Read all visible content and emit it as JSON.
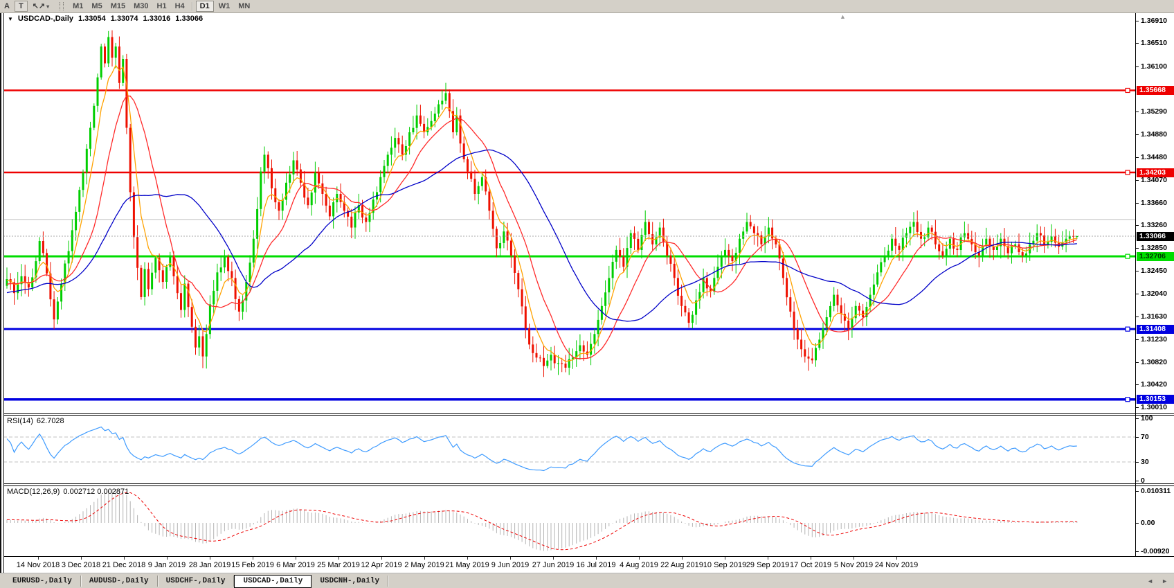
{
  "toolbar": {
    "font_tool": "A",
    "text_tool": "T",
    "arrows_tool_icon": "↖↗",
    "dropdown_icon": "▾",
    "timeframes": [
      "M1",
      "M5",
      "M15",
      "M30",
      "H1",
      "H4",
      "D1",
      "W1",
      "MN"
    ],
    "active_timeframe": "D1"
  },
  "chart": {
    "collapse_icon": "▼",
    "title": "USDCAD-,Daily",
    "quote": {
      "open": "1.33054",
      "high": "1.33074",
      "low": "1.33016",
      "close": "1.33066"
    },
    "shift_marker": "▲",
    "price_axis": {
      "ticks": [
        {
          "text": "1.36910",
          "v": 1.3691
        },
        {
          "text": "1.36510",
          "v": 1.3651
        },
        {
          "text": "1.36100",
          "v": 1.361
        },
        {
          "text": "1.35290",
          "v": 1.3529
        },
        {
          "text": "1.34880",
          "v": 1.3488
        },
        {
          "text": "1.34480",
          "v": 1.3448
        },
        {
          "text": "1.34070",
          "v": 1.3407
        },
        {
          "text": "1.33660",
          "v": 1.3366
        },
        {
          "text": "1.33260",
          "v": 1.3326
        },
        {
          "text": "1.32850",
          "v": 1.3285
        },
        {
          "text": "1.32450",
          "v": 1.3245
        },
        {
          "text": "1.32040",
          "v": 1.3204
        },
        {
          "text": "1.31630",
          "v": 1.3163
        },
        {
          "text": "1.31230",
          "v": 1.3123
        },
        {
          "text": "1.30820",
          "v": 1.3082
        },
        {
          "text": "1.30420",
          "v": 1.3042
        },
        {
          "text": "1.30010",
          "v": 1.3001
        }
      ],
      "badges": [
        {
          "text": "1.35668",
          "v": 1.35668,
          "bg": "#EE0000",
          "fg": "#FFFFFF"
        },
        {
          "text": "1.34203",
          "v": 1.34203,
          "bg": "#EE0000",
          "fg": "#FFFFFF"
        },
        {
          "text": "1.33066",
          "v": 1.33066,
          "bg": "#000000",
          "fg": "#FFFFFF"
        },
        {
          "text": "1.32706",
          "v": 1.32706,
          "bg": "#00DD00",
          "fg": "#003300"
        },
        {
          "text": "1.31408",
          "v": 1.31408,
          "bg": "#0000E0",
          "fg": "#FFFFFF"
        },
        {
          "text": "1.30153",
          "v": 1.30153,
          "bg": "#0000E0",
          "fg": "#FFFFFF"
        }
      ]
    }
  },
  "chart_data": {
    "type": "candlestick",
    "symbol": "USDCAD-",
    "period": "Daily",
    "bars": 296,
    "ylim": [
      1.299,
      1.3706
    ],
    "bull_color": "#00CE00",
    "bear_color": "#EE1100",
    "last_bar": {
      "open": 1.33054,
      "high": 1.33074,
      "low": 1.33016,
      "close": 1.33066
    },
    "current_price": 1.33066,
    "moving_averages": [
      {
        "period": 6,
        "type": "ema",
        "color": "#FFA200"
      },
      {
        "period": 14,
        "type": "sma",
        "color": "#FF2A2A"
      },
      {
        "period": 34,
        "type": "sma",
        "color": "#0000C8"
      }
    ],
    "hlines": [
      {
        "price": 1.35668,
        "color": "#EE0000",
        "width": 2.5,
        "handle": true
      },
      {
        "price": 1.34203,
        "color": "#EE0000",
        "width": 2.5,
        "handle": true
      },
      {
        "price": 1.33363,
        "color": "#BBBBBB",
        "width": 1,
        "handle": false
      },
      {
        "price": 1.32706,
        "color": "#00DD00",
        "width": 3,
        "handle": true
      },
      {
        "price": 1.31408,
        "color": "#0000E0",
        "width": 3,
        "handle": true
      },
      {
        "price": 1.30153,
        "color": "#0000E0",
        "width": 3.5,
        "handle": true
      }
    ],
    "anchor_closes": [
      [
        0,
        1.323
      ],
      [
        2,
        1.3205
      ],
      [
        4,
        1.3235
      ],
      [
        6,
        1.3215
      ],
      [
        8,
        1.3262
      ],
      [
        9,
        1.3298
      ],
      [
        11,
        1.324
      ],
      [
        13,
        1.3158
      ],
      [
        14,
        1.319
      ],
      [
        15,
        1.3222
      ],
      [
        17,
        1.328
      ],
      [
        19,
        1.335
      ],
      [
        21,
        1.342
      ],
      [
        23,
        1.35
      ],
      [
        25,
        1.359
      ],
      [
        26,
        1.3645
      ],
      [
        27,
        1.3615
      ],
      [
        28,
        1.3662
      ],
      [
        29,
        1.3625
      ],
      [
        30,
        1.3645
      ],
      [
        31,
        1.358
      ],
      [
        32,
        1.3623
      ],
      [
        33,
        1.35
      ],
      [
        34,
        1.3385
      ],
      [
        35,
        1.3305
      ],
      [
        36,
        1.325
      ],
      [
        37,
        1.3198
      ],
      [
        38,
        1.3248
      ],
      [
        39,
        1.3212
      ],
      [
        41,
        1.3268
      ],
      [
        43,
        1.3225
      ],
      [
        45,
        1.3272
      ],
      [
        47,
        1.3205
      ],
      [
        48,
        1.3175
      ],
      [
        49,
        1.3222
      ],
      [
        51,
        1.3145
      ],
      [
        52,
        1.3108
      ],
      [
        53,
        1.3128
      ],
      [
        54,
        1.3092
      ],
      [
        55,
        1.3132
      ],
      [
        56,
        1.3185
      ],
      [
        58,
        1.3242
      ],
      [
        60,
        1.327
      ],
      [
        62,
        1.3232
      ],
      [
        64,
        1.3172
      ],
      [
        66,
        1.3225
      ],
      [
        68,
        1.3302
      ],
      [
        69,
        1.3355
      ],
      [
        70,
        1.3422
      ],
      [
        71,
        1.3452
      ],
      [
        72,
        1.3428
      ],
      [
        73,
        1.3392
      ],
      [
        75,
        1.3352
      ],
      [
        77,
        1.3402
      ],
      [
        79,
        1.3442
      ],
      [
        81,
        1.3402
      ],
      [
        83,
        1.3362
      ],
      [
        85,
        1.342
      ],
      [
        87,
        1.3382
      ],
      [
        89,
        1.3342
      ],
      [
        91,
        1.3382
      ],
      [
        93,
        1.3352
      ],
      [
        95,
        1.3322
      ],
      [
        97,
        1.3362
      ],
      [
        99,
        1.3332
      ],
      [
        101,
        1.3372
      ],
      [
        103,
        1.3412
      ],
      [
        105,
        1.3452
      ],
      [
        107,
        1.3482
      ],
      [
        109,
        1.3452
      ],
      [
        111,
        1.3492
      ],
      [
        113,
        1.3522
      ],
      [
        115,
        1.3492
      ],
      [
        117,
        1.3512
      ],
      [
        119,
        1.3542
      ],
      [
        121,
        1.3562
      ],
      [
        122,
        1.353
      ],
      [
        123,
        1.3492
      ],
      [
        124,
        1.3522
      ],
      [
        125,
        1.3472
      ],
      [
        127,
        1.3422
      ],
      [
        129,
        1.3382
      ],
      [
        131,
        1.3412
      ],
      [
        133,
        1.3352
      ],
      [
        135,
        1.3285
      ],
      [
        137,
        1.3315
      ],
      [
        139,
        1.3272
      ],
      [
        141,
        1.3212
      ],
      [
        143,
        1.3142
      ],
      [
        145,
        1.3098
      ],
      [
        146,
        1.309
      ],
      [
        148,
        1.3075
      ],
      [
        150,
        1.3095
      ],
      [
        152,
        1.308
      ],
      [
        154,
        1.3072
      ],
      [
        156,
        1.309
      ],
      [
        158,
        1.3112
      ],
      [
        160,
        1.3095
      ],
      [
        162,
        1.3132
      ],
      [
        164,
        1.3182
      ],
      [
        166,
        1.3232
      ],
      [
        168,
        1.3282
      ],
      [
        170,
        1.3252
      ],
      [
        172,
        1.3312
      ],
      [
        174,
        1.3282
      ],
      [
        176,
        1.3332
      ],
      [
        178,
        1.3292
      ],
      [
        180,
        1.3322
      ],
      [
        182,
        1.3272
      ],
      [
        184,
        1.3232
      ],
      [
        186,
        1.3182
      ],
      [
        188,
        1.3152
      ],
      [
        190,
        1.3192
      ],
      [
        192,
        1.3232
      ],
      [
        194,
        1.3208
      ],
      [
        196,
        1.3252
      ],
      [
        198,
        1.3282
      ],
      [
        200,
        1.3262
      ],
      [
        202,
        1.3302
      ],
      [
        204,
        1.3332
      ],
      [
        206,
        1.3312
      ],
      [
        208,
        1.3292
      ],
      [
        210,
        1.3322
      ],
      [
        212,
        1.3292
      ],
      [
        214,
        1.3232
      ],
      [
        216,
        1.3172
      ],
      [
        218,
        1.3122
      ],
      [
        220,
        1.3092
      ],
      [
        222,
        1.3085
      ],
      [
        224,
        1.3122
      ],
      [
        226,
        1.3162
      ],
      [
        228,
        1.3202
      ],
      [
        230,
        1.3168
      ],
      [
        232,
        1.3142
      ],
      [
        234,
        1.3182
      ],
      [
        236,
        1.3162
      ],
      [
        238,
        1.3202
      ],
      [
        240,
        1.3242
      ],
      [
        242,
        1.3272
      ],
      [
        244,
        1.3302
      ],
      [
        246,
        1.3282
      ],
      [
        248,
        1.3312
      ],
      [
        250,
        1.3332
      ],
      [
        252,
        1.3302
      ],
      [
        254,
        1.3322
      ],
      [
        256,
        1.3292
      ],
      [
        258,
        1.3272
      ],
      [
        260,
        1.3302
      ],
      [
        262,
        1.3282
      ],
      [
        264,
        1.3312
      ],
      [
        266,
        1.3292
      ],
      [
        268,
        1.3272
      ],
      [
        270,
        1.3302
      ],
      [
        272,
        1.3282
      ],
      [
        274,
        1.3302
      ],
      [
        276,
        1.3276
      ],
      [
        278,
        1.3292
      ],
      [
        280,
        1.3272
      ],
      [
        282,
        1.3292
      ],
      [
        284,
        1.3312
      ],
      [
        286,
        1.3292
      ],
      [
        288,
        1.3306
      ],
      [
        290,
        1.3288
      ],
      [
        292,
        1.3302
      ],
      [
        294,
        1.33054
      ],
      [
        295,
        1.33066
      ]
    ],
    "indicators": {
      "rsi_period": 14,
      "macd": [
        12,
        26,
        9
      ]
    }
  },
  "rsi": {
    "name": "RSI(14)",
    "value": "62.7028",
    "color": "#3E9BFF",
    "guides": [
      70,
      30
    ],
    "axis": [
      {
        "text": "100",
        "v": 100
      },
      {
        "text": "70",
        "v": 70
      },
      {
        "text": "30",
        "v": 30
      },
      {
        "text": "0",
        "v": 0
      }
    ]
  },
  "macd": {
    "name": "MACD(12,26,9)",
    "values": "0.002712 0.002871",
    "hist_color": "#B4B4B4",
    "signal_color": "#EE0000",
    "axis": [
      {
        "text": "0.010311",
        "v": 0.010311
      },
      {
        "text": "0.00",
        "v": 0
      },
      {
        "text": "-0.00920",
        "v": -0.0092
      }
    ]
  },
  "dates": [
    "14 Nov 2018",
    "3 Dec 2018",
    "21 Dec 2018",
    "9 Jan 2019",
    "28 Jan 2019",
    "15 Feb 2019",
    "6 Mar 2019",
    "25 Mar 2019",
    "12 Apr 2019",
    "2 May 2019",
    "21 May 2019",
    "9 Jun 2019",
    "27 Jun 2019",
    "16 Jul 2019",
    "4 Aug 2019",
    "22 Aug 2019",
    "10 Sep 2019",
    "29 Sep 2019",
    "17 Oct 2019",
    "5 Nov 2019",
    "24 Nov 2019"
  ],
  "tabs": {
    "items": [
      "EURUSD-,Daily",
      "AUDUSD-,Daily",
      "USDCHF-,Daily",
      "USDCAD-,Daily",
      "USDCNH-,Daily"
    ],
    "active": "USDCAD-,Daily"
  },
  "scroll": {
    "left_icon": "◄",
    "right_icon": "►"
  }
}
